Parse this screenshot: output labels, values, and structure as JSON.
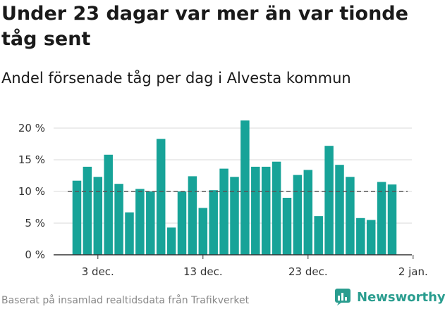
{
  "title": "Under 23 dagar var mer än var tionde tåg sent",
  "subtitle": "Andel försenade tåg per dag i Alvesta kommun",
  "footer": "Baserat på insamlad realtidsdata från Trafikverket",
  "brand": "Newsworthy",
  "colors": {
    "bar": "#17a398",
    "reference_line": "#555555",
    "brand": "#2a9d8f"
  },
  "chart_data": {
    "type": "bar",
    "title": "Under 23 dagar var mer än var tionde tåg sent",
    "subtitle": "Andel försenade tåg per dag i Alvesta kommun",
    "xlabel": "",
    "ylabel": "",
    "x_ticks": [
      {
        "label": "3 dec.",
        "index": 2
      },
      {
        "label": "13 dec.",
        "index": 12
      },
      {
        "label": "23 dec.",
        "index": 22
      },
      {
        "label": "2 jan.",
        "index": 32
      }
    ],
    "y_ticks": [
      {
        "label": "0 %",
        "value": 0
      },
      {
        "label": "5 %",
        "value": 5
      },
      {
        "label": "10 %",
        "value": 10
      },
      {
        "label": "15 %",
        "value": 15
      },
      {
        "label": "20 %",
        "value": 20
      }
    ],
    "ylim": [
      0,
      22
    ],
    "reference_line": {
      "value": 10,
      "style": "dashed"
    },
    "grid": true,
    "values": [
      11.7,
      13.9,
      12.3,
      15.8,
      11.2,
      6.7,
      10.4,
      10.0,
      18.3,
      4.3,
      10.0,
      12.4,
      7.4,
      10.2,
      13.6,
      12.3,
      21.2,
      13.9,
      13.9,
      14.7,
      9.0,
      12.6,
      13.4,
      6.1,
      17.2,
      14.2,
      12.3,
      5.8,
      5.5,
      11.5,
      11.1
    ]
  }
}
